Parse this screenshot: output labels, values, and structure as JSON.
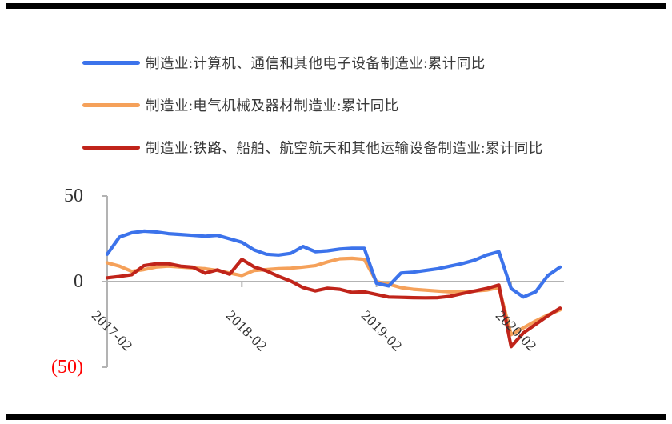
{
  "page": {
    "background": "#ffffff",
    "top_rule_color": "#000000",
    "bottom_rule_color": "#000000"
  },
  "chart_data": {
    "type": "line",
    "title": "",
    "xlabel": "",
    "ylabel": "",
    "ylim": [
      -50,
      50
    ],
    "grid": "zero-baseline-only",
    "legend_position": "top-left",
    "axis_color": "#b3b3b3",
    "draw_order": [
      1,
      0,
      2
    ],
    "x": [
      "2017-02",
      "2017-03",
      "2017-04",
      "2017-05",
      "2017-06",
      "2017-07",
      "2017-08",
      "2017-09",
      "2017-10",
      "2017-11",
      "2017-12",
      "2018-02",
      "2018-03",
      "2018-04",
      "2018-05",
      "2018-06",
      "2018-07",
      "2018-08",
      "2018-09",
      "2018-10",
      "2018-11",
      "2018-12",
      "2019-02",
      "2019-03",
      "2019-04",
      "2019-05",
      "2019-06",
      "2019-07",
      "2019-08",
      "2019-09",
      "2019-10",
      "2019-11",
      "2019-12",
      "2020-02",
      "2020-03",
      "2020-04",
      "2020-05",
      "2020-06"
    ],
    "x_tick_labels": [
      "2017-02",
      "2018-02",
      "2019-02",
      "2020-02"
    ],
    "x_tick_indices": [
      0,
      11,
      22,
      33
    ],
    "y_ticks": [
      {
        "label": "50",
        "value": 50,
        "color": "#333333"
      },
      {
        "label": "0",
        "value": 0,
        "color": "#333333"
      },
      {
        "label": "(50)",
        "value": -50,
        "color": "#ff0000"
      }
    ],
    "series": [
      {
        "name": "制造业:计算机、通信和其他电子设备制造业:累计同比",
        "color": "#3c73eb",
        "values": [
          16,
          26,
          28.5,
          29.5,
          29,
          28,
          27.5,
          27,
          26.5,
          27,
          25,
          23,
          18.5,
          16,
          15.5,
          16.5,
          20.5,
          17.5,
          18,
          19,
          19.5,
          19.5,
          -1,
          -2.5,
          5,
          5.5,
          6.5,
          7.5,
          9,
          10.5,
          12.5,
          15.5,
          17.5,
          -4,
          -9,
          -6,
          3.5,
          8.5
        ]
      },
      {
        "name": "制造业:电气机械及器材制造业:累计同比",
        "color": "#f5a15a",
        "values": [
          11,
          9,
          6,
          7,
          8.5,
          9,
          8.5,
          8,
          7.5,
          6.5,
          5,
          3.5,
          6.5,
          7,
          7.5,
          7.8,
          8.5,
          9.3,
          11.5,
          13.3,
          13.6,
          13,
          0,
          -1.5,
          -3.5,
          -4.5,
          -5,
          -5.5,
          -6,
          -6,
          -5.5,
          -5,
          -3.5,
          -31,
          -27,
          -23,
          -19.5,
          -16.5
        ]
      },
      {
        "name": "制造业:铁路、船舶、航空航天和其他运输设备制造业:累计同比",
        "color": "#c0241a",
        "values": [
          2.2,
          3,
          4,
          9.3,
          10.4,
          10.4,
          9,
          8.4,
          4.9,
          6.8,
          4.3,
          13,
          8.6,
          6.3,
          3.1,
          0.3,
          -3.5,
          -5.4,
          -3.9,
          -4.5,
          -6.3,
          -6,
          -7.5,
          -9,
          -9.2,
          -9.4,
          -9.5,
          -9.4,
          -8.6,
          -7,
          -5.5,
          -4,
          -2,
          -38,
          -30,
          -25,
          -20,
          -15.5
        ]
      }
    ]
  }
}
